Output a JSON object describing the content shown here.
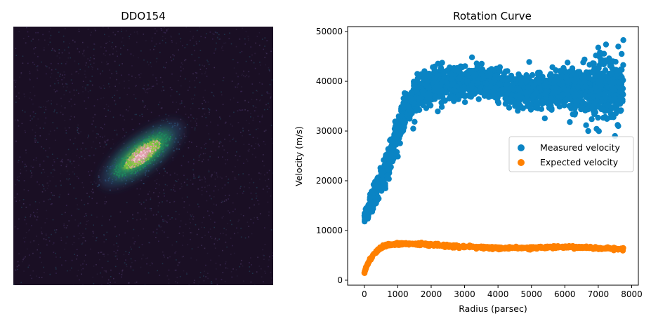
{
  "chart_data": [
    {
      "type": "heatmap",
      "title": "DDO154",
      "description_colormap": "dark purple background with green, yellow and pink galaxy core",
      "axes_visible": false,
      "colors": {
        "background": "#1a0f24",
        "outer": "#2a4a6e",
        "mid": "#1f8a5e",
        "inner": "#8fcf3e",
        "core": "#e89ab0",
        "peak": "#f2d0dc"
      }
    },
    {
      "type": "scatter",
      "title": "Rotation Curve",
      "xlabel": "Radius (parsec)",
      "ylabel": "Velocity (m/s)",
      "xlim": [
        -500,
        8200
      ],
      "ylim": [
        -1000,
        51000
      ],
      "xticks": [
        0,
        1000,
        2000,
        3000,
        4000,
        5000,
        6000,
        7000,
        8000
      ],
      "yticks": [
        0,
        10000,
        20000,
        30000,
        40000,
        50000
      ],
      "grid": false,
      "legend_position": "center-right",
      "series": [
        {
          "name": "Measured velocity",
          "color": "#0a84c4",
          "trend": [
            [
              0,
              12500
            ],
            [
              250,
              16000
            ],
            [
              500,
              20000
            ],
            [
              750,
              24000
            ],
            [
              1000,
              29500
            ],
            [
              1250,
              34000
            ],
            [
              1500,
              37000
            ],
            [
              1750,
              38500
            ],
            [
              2000,
              39000
            ],
            [
              2500,
              39500
            ],
            [
              3000,
              40000
            ],
            [
              3500,
              40000
            ],
            [
              4000,
              39000
            ],
            [
              4500,
              38500
            ],
            [
              5000,
              38000
            ],
            [
              5500,
              38000
            ],
            [
              6000,
              38500
            ],
            [
              6500,
              38000
            ],
            [
              7000,
              38500
            ],
            [
              7500,
              38500
            ],
            [
              7750,
              39000
            ]
          ],
          "spread": [
            [
              0,
              1200
            ],
            [
              1000,
              2500
            ],
            [
              2000,
              2200
            ],
            [
              4000,
              2000
            ],
            [
              6000,
              2300
            ],
            [
              7000,
              3500
            ],
            [
              7750,
              4000
            ]
          ],
          "outliers": [
            [
              7750,
              48300
            ],
            [
              7700,
              45500
            ],
            [
              7600,
              47000
            ],
            [
              7000,
              46800
            ],
            [
              7050,
              45800
            ],
            [
              6550,
              43800
            ],
            [
              7150,
              44200
            ],
            [
              7300,
              43900
            ],
            [
              6700,
              30000
            ],
            [
              7500,
              29000
            ],
            [
              7600,
              31000
            ],
            [
              6150,
              31800
            ]
          ]
        },
        {
          "name": "Expected velocity",
          "color": "#ff8000",
          "trend": [
            [
              0,
              1500
            ],
            [
              50,
              2500
            ],
            [
              100,
              3300
            ],
            [
              200,
              4400
            ],
            [
              300,
              5300
            ],
            [
              400,
              6000
            ],
            [
              500,
              6500
            ],
            [
              600,
              6900
            ],
            [
              700,
              7100
            ],
            [
              800,
              7200
            ],
            [
              1000,
              7300
            ],
            [
              1200,
              7300
            ],
            [
              1500,
              7300
            ],
            [
              2000,
              7100
            ],
            [
              2500,
              6900
            ],
            [
              3000,
              6700
            ],
            [
              3500,
              6600
            ],
            [
              4000,
              6500
            ],
            [
              4500,
              6500
            ],
            [
              5000,
              6500
            ],
            [
              5500,
              6600
            ],
            [
              6000,
              6700
            ],
            [
              6500,
              6600
            ],
            [
              7000,
              6400
            ],
            [
              7500,
              6300
            ],
            [
              7750,
              6200
            ]
          ]
        }
      ]
    }
  ]
}
